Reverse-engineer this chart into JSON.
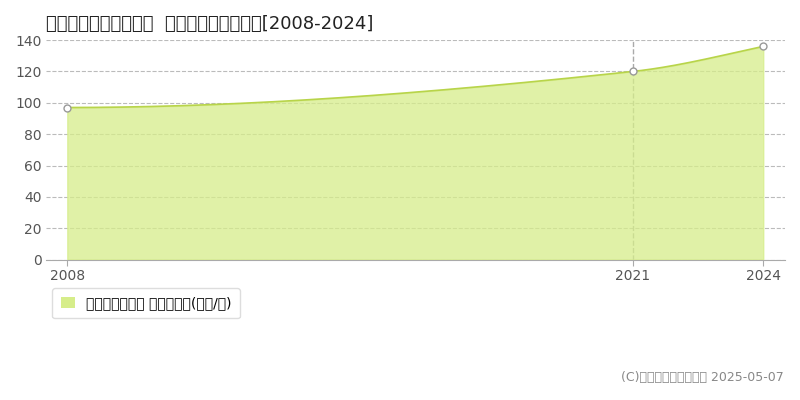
{
  "title": "新潟市中央区学校町通  マンション価格推移[2008-2024]",
  "years": [
    2008,
    2021,
    2024
  ],
  "values": [
    97,
    120,
    136
  ],
  "fill_color": "#d6ed8a",
  "fill_alpha": 0.75,
  "line_color": "#b8d44a",
  "marker_color": "#ffffff",
  "marker_edge_color": "#999999",
  "vline_year": 2021,
  "vline_color": "#aaaaaa",
  "ylim": [
    0,
    140
  ],
  "yticks": [
    0,
    20,
    40,
    60,
    80,
    100,
    120,
    140
  ],
  "xticks": [
    2008,
    2021,
    2024
  ],
  "grid_color": "#bbbbbb",
  "grid_style": "--",
  "background_color": "#ffffff",
  "plot_bg_color": "#ffffff",
  "legend_label": "マンション価格 平均坪単価(万円/坪)",
  "copyright_text": "(C)土地価格ドットコム 2025-05-07",
  "title_fontsize": 13,
  "tick_fontsize": 10,
  "legend_fontsize": 10,
  "copyright_fontsize": 9,
  "xlim_left": 2007.5,
  "xlim_right": 2024.5
}
